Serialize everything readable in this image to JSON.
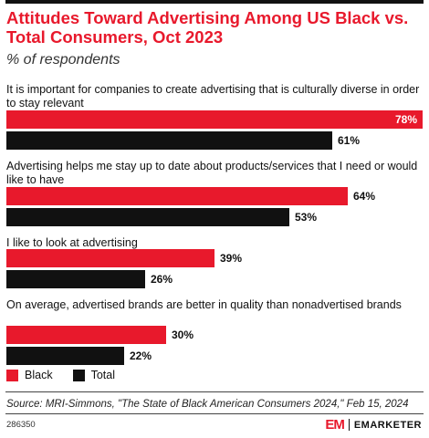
{
  "header": {
    "title": "Attitudes Toward Advertising Among US Black vs. Total Consumers, Oct 2023",
    "subtitle": "% of respondents"
  },
  "colors": {
    "black_series": "#e8192c",
    "total_series": "#111111",
    "title": "#e8192c"
  },
  "chart_data": {
    "type": "bar",
    "orientation": "horizontal",
    "categories": [
      "It is important for companies to create advertising that is culturally diverse in order to stay relevant",
      "Advertising helps me stay up to date about products/services that I need or would like to have",
      "I like to look at advertising",
      "On average, advertised brands are better in quality than nonadvertised brands"
    ],
    "series": [
      {
        "name": "Black",
        "values": [
          78,
          64,
          39,
          30
        ],
        "color": "#e8192c"
      },
      {
        "name": "Total",
        "values": [
          61,
          53,
          26,
          22
        ],
        "color": "#111111"
      }
    ],
    "unit": "%",
    "xlim": [
      0,
      78
    ],
    "grid": false,
    "legend": "bottom-left"
  },
  "footer": {
    "source": "Source: MRI-Simmons, \"The State of Black American Consumers 2024,\" Feb 15, 2024",
    "chart_id": "286350",
    "brand_mark": "EM",
    "brand_name": "EMARKETER"
  }
}
